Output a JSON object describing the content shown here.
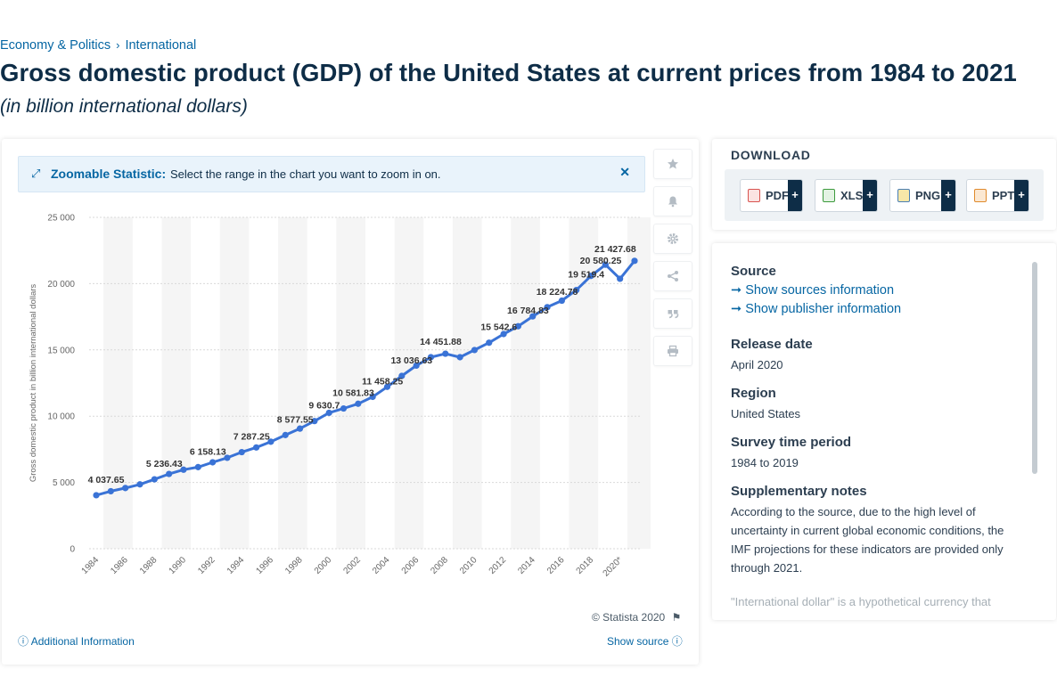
{
  "breadcrumb": {
    "items": [
      "Economy & Politics",
      "International"
    ],
    "separator": "›"
  },
  "page": {
    "title": "Gross domestic product (GDP) of the United States at current prices from 1984 to 2021",
    "subtitle": "(in billion international dollars)"
  },
  "zoom_notice": {
    "title": "Zoomable Statistic:",
    "text": "Select the range in the chart you want to zoom in on.",
    "close_icon": "close-icon"
  },
  "toolbar": {
    "icons": [
      "star-icon",
      "bell-icon",
      "gear-icon",
      "share-icon",
      "quote-icon",
      "print-icon"
    ]
  },
  "chart_footer": {
    "credit": "© Statista 2020",
    "additional_info": "Additional Information",
    "show_source": "Show source"
  },
  "download": {
    "title": "DOWNLOAD",
    "buttons": [
      {
        "label": "PDF",
        "icon": "pdf-icon",
        "color": "#d9534f"
      },
      {
        "label": "XLS",
        "icon": "xls-icon",
        "color": "#3c9a3c"
      },
      {
        "label": "PNG",
        "icon": "png-icon",
        "color": "#4a7fb5"
      },
      {
        "label": "PPT",
        "icon": "ppt-icon",
        "color": "#e08a2c"
      }
    ],
    "plus": "+"
  },
  "info": {
    "source_heading": "Source",
    "sources_link": "Show sources information",
    "publisher_link": "Show publisher information",
    "release_heading": "Release date",
    "release_value": "April 2020",
    "region_heading": "Region",
    "region_value": "United States",
    "survey_heading": "Survey time period",
    "survey_value": "1984 to 2019",
    "notes_heading": "Supplementary notes",
    "notes_value": "According to the source, due to the high level of uncertainty in current global economic conditions, the IMF projections for these indicators are provided only through 2021.",
    "notes_more": "\"International dollar\" is a hypothetical currency that"
  },
  "colors": {
    "line": "#3a73d6",
    "accent": "#0666a3",
    "grid": "#d9d9d9",
    "band": "#f5f5f5"
  },
  "chart_data": {
    "type": "line",
    "title": "",
    "xlabel": "",
    "ylabel": "Gross domestic product in billion international dollars",
    "ylim": [
      0,
      25000
    ],
    "yticks": [
      0,
      5000,
      10000,
      15000,
      20000,
      25000
    ],
    "ytick_labels": [
      "0",
      "5 000",
      "10 000",
      "15 000",
      "20 000",
      "25 000"
    ],
    "grid": true,
    "x": [
      "1984",
      "1985",
      "1986",
      "1987",
      "1988",
      "1989",
      "1990",
      "1991",
      "1992",
      "1993",
      "1994",
      "1995",
      "1996",
      "1997",
      "1998",
      "1999",
      "2000",
      "2001",
      "2002",
      "2003",
      "2004",
      "2005",
      "2006",
      "2007",
      "2008",
      "2009",
      "2010",
      "2011",
      "2012",
      "2013",
      "2014",
      "2015",
      "2016",
      "2017",
      "2018",
      "2019",
      "2020*",
      "2021*"
    ],
    "xtick_labels": [
      "1984",
      "1986",
      "1988",
      "1990",
      "1992",
      "1994",
      "1996",
      "1998",
      "2000",
      "2002",
      "2004",
      "2006",
      "2008",
      "2010",
      "2012",
      "2014",
      "2016",
      "2018",
      "2020*"
    ],
    "series": [
      {
        "values": [
          4037.65,
          4339,
          4579.63,
          4855.25,
          5236.43,
          5641.58,
          5963.13,
          6158.13,
          6520.33,
          6858.55,
          7287.25,
          7639.75,
          8073.13,
          8577.55,
          9062.83,
          9630.7,
          10252.35,
          10581.83,
          10936.43,
          11458.25,
          12213.73,
          13036.63,
          13814.6,
          14451.88,
          14712.85,
          14448.93,
          14992.05,
          15542.6,
          16197,
          16784.83,
          17527.28,
          18224.78,
          18715.03,
          19519.4,
          20580.25,
          21427.68,
          20368.55,
          21719.5
        ],
        "data_labels": {
          "0": "4 037.65",
          "4": "5 236.43",
          "7": "6 158.13",
          "10": "7 287.25",
          "13": "8 577.55",
          "15": "9 630.7",
          "17": "10 581.83",
          "19": "11 458.25",
          "21": "13 036.63",
          "23": "14 451.88",
          "27": "15 542.6",
          "29": "16 784.83",
          "31": "18 224.78",
          "33": "19 519.4",
          "34": "20 580.25",
          "35": "21 427.68"
        }
      }
    ]
  }
}
